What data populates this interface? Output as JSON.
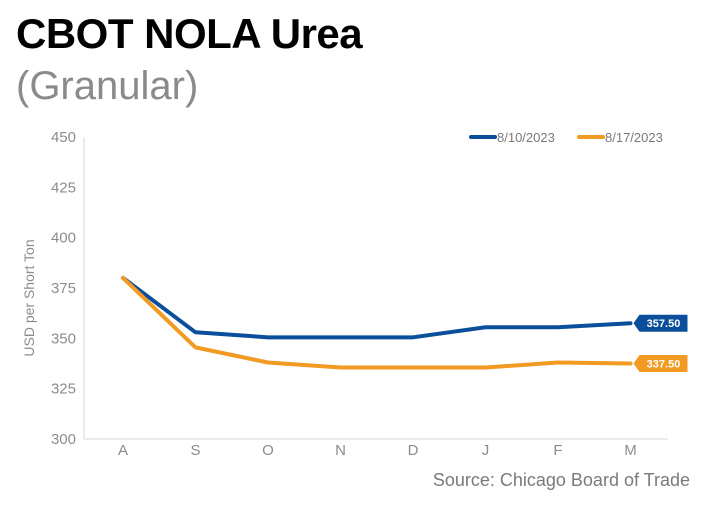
{
  "title": "CBOT NOLA Urea",
  "subtitle": "(Granular)",
  "source": "Source: Chicago Board of Trade",
  "chart_data": {
    "type": "line",
    "categories": [
      "A",
      "S",
      "O",
      "N",
      "D",
      "J",
      "F",
      "M"
    ],
    "ylabel": "USD per Short Ton",
    "xlabel": "",
    "ylim": [
      300,
      450
    ],
    "yticks": [
      300,
      325,
      350,
      375,
      400,
      425,
      450
    ],
    "grid": false,
    "legend_position": "top-right",
    "series": [
      {
        "name": "8/10/2023",
        "color": "#0b4f9c",
        "values": [
          380,
          353,
          350.5,
          350.5,
          350.5,
          355.5,
          355.5,
          357.5
        ],
        "end_label": "357.50"
      },
      {
        "name": "8/17/2023",
        "color": "#f29a22",
        "values": [
          380,
          345.5,
          338,
          335.5,
          335.5,
          335.5,
          338,
          337.5
        ],
        "end_label": "337.50"
      }
    ]
  }
}
